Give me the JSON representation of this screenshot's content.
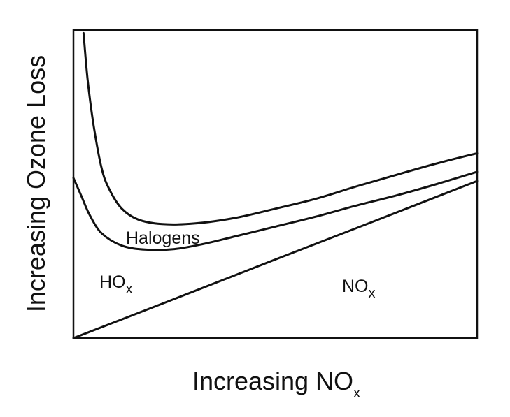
{
  "chart_data": {
    "type": "area",
    "title": "",
    "xlabel": {
      "text": "Increasing NO",
      "subscript": "x"
    },
    "ylabel": "Increasing Ozone Loss",
    "xlim": [
      0,
      1
    ],
    "ylim": [
      0,
      1
    ],
    "grid": false,
    "ticks": false,
    "boundaries": [
      {
        "id": "nox-boundary",
        "x": [
          0.0,
          0.25,
          0.5,
          0.75,
          1.0
        ],
        "y": [
          0.0,
          0.127,
          0.255,
          0.382,
          0.51
        ]
      },
      {
        "id": "hox-halogen-boundary",
        "x": [
          0.0,
          0.02,
          0.04,
          0.07,
          0.12,
          0.18,
          0.25,
          0.32,
          0.4,
          0.5,
          0.6,
          0.7,
          0.8,
          0.9,
          1.0
        ],
        "y": [
          0.52,
          0.46,
          0.4,
          0.34,
          0.3,
          0.287,
          0.289,
          0.305,
          0.33,
          0.362,
          0.394,
          0.43,
          0.463,
          0.5,
          0.54
        ]
      },
      {
        "id": "halogen-upper-boundary",
        "x": [
          0.025,
          0.035,
          0.05,
          0.07,
          0.09,
          0.12,
          0.16,
          0.22,
          0.3,
          0.4,
          0.5,
          0.6,
          0.7,
          0.8,
          0.9,
          1.0
        ],
        "y": [
          0.99,
          0.84,
          0.69,
          0.55,
          0.48,
          0.42,
          0.385,
          0.37,
          0.372,
          0.39,
          0.42,
          0.452,
          0.492,
          0.53,
          0.567,
          0.6
        ]
      }
    ],
    "regions": [
      {
        "name": "HO",
        "subscript": "x"
      },
      {
        "name": "Halogens",
        "subscript": ""
      },
      {
        "name": "NO",
        "subscript": "x"
      }
    ]
  }
}
